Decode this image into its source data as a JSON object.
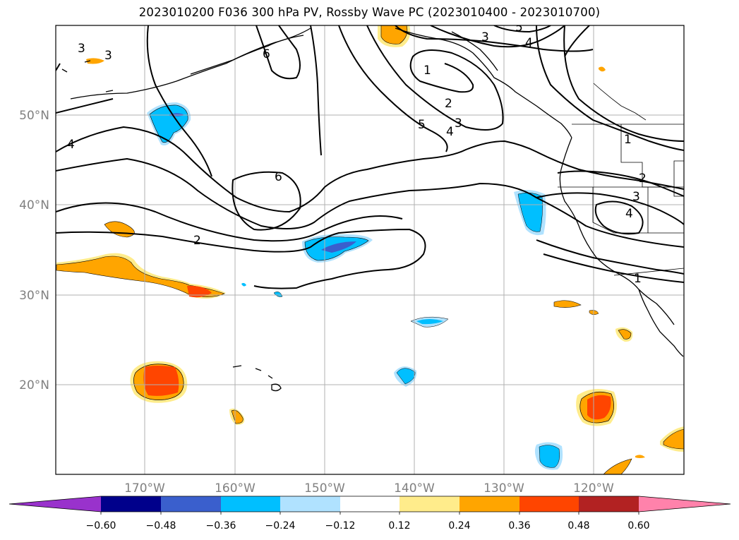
{
  "title": "2023010200 F036 300 hPa PV, Rossby Wave PC (2023010400 - 2023010700)",
  "map": {
    "lat_labels": [
      "50°N",
      "40°N",
      "30°N",
      "20°N"
    ],
    "lon_labels": [
      "170°W",
      "160°W",
      "150°W",
      "140°W",
      "130°W",
      "120°W"
    ],
    "contour_labels": [
      "3",
      "3",
      "6",
      "4",
      "1",
      "2",
      "3",
      "5",
      "4",
      "3",
      "4",
      "6",
      "2",
      "1",
      "2",
      "3",
      "4",
      "1",
      "5"
    ]
  },
  "colorbar": {
    "colors": [
      "#9932cc",
      "#00008b",
      "#3a5fcd",
      "#00bfff",
      "#b0e2ff",
      "#ffffff",
      "#ffec8b",
      "#ffa500",
      "#ff4500",
      "#b22222",
      "#ff82ab"
    ],
    "tick_labels": [
      "−0.60",
      "−0.48",
      "−0.36",
      "−0.24",
      "−0.12",
      "0.12",
      "0.24",
      "0.36",
      "0.48",
      "0.60"
    ]
  }
}
